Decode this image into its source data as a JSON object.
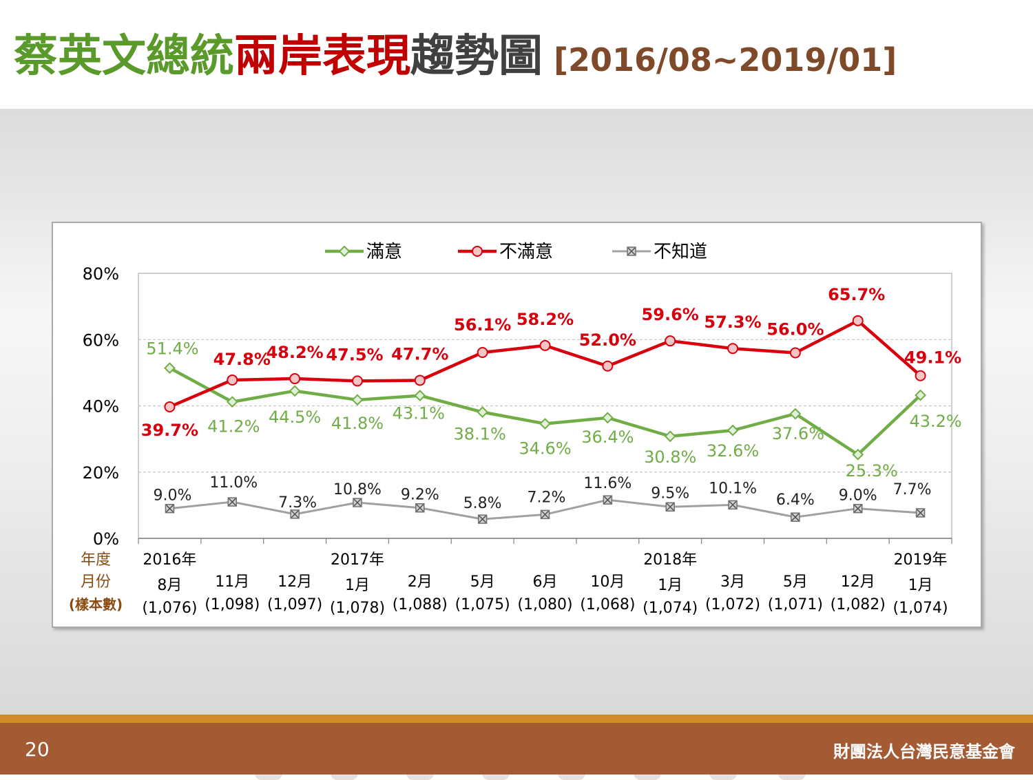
{
  "title": {
    "part1": "蔡英文總統",
    "part2": "兩岸表現",
    "part3": "趨勢圖",
    "date_range": "[2016/08~2019/01]",
    "colors": {
      "part1": "#5a9a2b",
      "part2": "#c00000",
      "part3": "#404040",
      "date_range": "#7f4a2a"
    }
  },
  "chart_data": {
    "type": "line",
    "ylim": [
      0,
      80
    ],
    "yticks": [
      "0%",
      "20%",
      "40%",
      "60%",
      "80%"
    ],
    "row_labels": [
      "年度",
      "月份",
      "(樣本數)"
    ],
    "categories": [
      {
        "year": "2016年",
        "month": "8月",
        "sample": "(1,076)"
      },
      {
        "year": "",
        "month": "11月",
        "sample": "(1,098)"
      },
      {
        "year": "",
        "month": "12月",
        "sample": "(1,097)"
      },
      {
        "year": "2017年",
        "month": "1月",
        "sample": "(1,078)"
      },
      {
        "year": "",
        "month": "2月",
        "sample": "(1,088)"
      },
      {
        "year": "",
        "month": "5月",
        "sample": "(1,075)"
      },
      {
        "year": "",
        "month": "6月",
        "sample": "(1,080)"
      },
      {
        "year": "",
        "month": "10月",
        "sample": "(1,068)"
      },
      {
        "year": "2018年",
        "month": "1月",
        "sample": "(1,074)"
      },
      {
        "year": "",
        "month": "3月",
        "sample": "(1,072)"
      },
      {
        "year": "",
        "month": "5月",
        "sample": "(1,071)"
      },
      {
        "year": "",
        "month": "12月",
        "sample": "(1,082)"
      },
      {
        "year": "2019年",
        "month": "1月",
        "sample": "(1,074)"
      }
    ],
    "series": [
      {
        "name": "滿意",
        "color": "#70ad47",
        "marker": "diamond",
        "values": [
          51.4,
          41.2,
          44.5,
          41.8,
          43.1,
          38.1,
          34.6,
          36.4,
          30.8,
          32.6,
          37.6,
          25.3,
          43.2
        ],
        "labels": [
          "51.4%",
          "41.2%",
          "44.5%",
          "41.8%",
          "43.1%",
          "38.1%",
          "34.6%",
          "36.4%",
          "30.8%",
          "32.6%",
          "37.6%",
          "25.3%",
          "43.2%"
        ]
      },
      {
        "name": "不滿意",
        "color": "#d9000d",
        "marker": "circle",
        "values": [
          39.7,
          47.8,
          48.2,
          47.5,
          47.7,
          56.1,
          58.2,
          52.0,
          59.6,
          57.3,
          56.0,
          65.7,
          49.1
        ],
        "labels": [
          "39.7%",
          "47.8%",
          "48.2%",
          "47.5%",
          "47.7%",
          "56.1%",
          "58.2%",
          "52.0%",
          "59.6%",
          "57.3%",
          "56.0%",
          "65.7%",
          "49.1%"
        ]
      },
      {
        "name": "不知道",
        "color": "#a0a0a0",
        "marker": "x-square",
        "values": [
          9.0,
          11.0,
          7.3,
          10.8,
          9.2,
          5.8,
          7.2,
          11.6,
          9.5,
          10.1,
          6.4,
          9.0,
          7.7
        ],
        "labels": [
          "9.0%",
          "11.0%",
          "7.3%",
          "10.8%",
          "9.2%",
          "5.8%",
          "7.2%",
          "11.6%",
          "9.5%",
          "10.1%",
          "6.4%",
          "9.0%",
          "7.7%"
        ]
      }
    ],
    "legend_position": "top",
    "grid": "horizontal-dashed"
  },
  "footer": {
    "page_number": "20",
    "organization": "財團法人台灣民意基金會"
  }
}
